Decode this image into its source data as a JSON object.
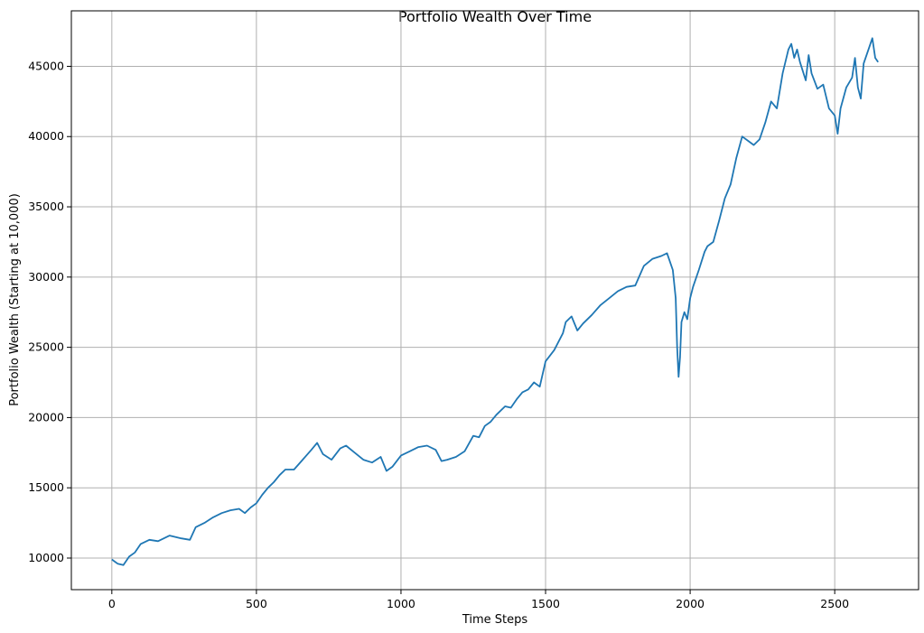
{
  "chart_data": {
    "type": "line",
    "title": "Portfolio Wealth Over Time",
    "xlabel": "Time Steps",
    "ylabel": "Portfolio Wealth (Starting at 10,000)",
    "xlim": [
      -140,
      2790
    ],
    "ylim": [
      7750,
      48950
    ],
    "xticks": [
      0,
      500,
      1000,
      1500,
      2000,
      2500
    ],
    "yticks": [
      10000,
      15000,
      20000,
      25000,
      30000,
      35000,
      40000,
      45000
    ],
    "grid": true,
    "series_color": "#1f77b4",
    "series": [
      {
        "x": [
          0,
          20,
          40,
          60,
          80,
          100,
          130,
          160,
          200,
          240,
          270,
          290,
          320,
          350,
          380,
          410,
          440,
          460,
          480,
          500,
          520,
          540,
          560,
          580,
          600,
          630,
          660,
          690,
          710,
          730,
          760,
          790,
          810,
          840,
          870,
          900,
          930,
          950,
          970,
          1000,
          1030,
          1060,
          1090,
          1120,
          1140,
          1160,
          1190,
          1220,
          1250,
          1270,
          1290,
          1310,
          1330,
          1360,
          1380,
          1400,
          1420,
          1440,
          1460,
          1480,
          1500,
          1530,
          1560,
          1570,
          1590,
          1610,
          1630,
          1660,
          1690,
          1720,
          1750,
          1780,
          1810,
          1840,
          1870,
          1900,
          1920,
          1940,
          1950,
          1955,
          1960,
          1965,
          1970,
          1980,
          1990,
          2000,
          2010,
          2030,
          2050,
          2060,
          2080,
          2100,
          2120,
          2140,
          2160,
          2180,
          2200,
          2220,
          2240,
          2260,
          2280,
          2300,
          2320,
          2340,
          2350,
          2360,
          2370,
          2380,
          2400,
          2410,
          2420,
          2440,
          2460,
          2480,
          2500,
          2510,
          2520,
          2540,
          2560,
          2570,
          2580,
          2590,
          2600,
          2620,
          2630,
          2640,
          2650
        ],
        "y": [
          9900,
          9600,
          9500,
          10100,
          10400,
          11000,
          11300,
          11200,
          11600,
          11400,
          11300,
          12200,
          12500,
          12900,
          13200,
          13400,
          13500,
          13200,
          13600,
          13900,
          14500,
          15000,
          15400,
          15900,
          16300,
          16300,
          17000,
          17700,
          18200,
          17400,
          17000,
          17800,
          18000,
          17500,
          17000,
          16800,
          17200,
          16200,
          16500,
          17300,
          17600,
          17900,
          18000,
          17700,
          16900,
          17000,
          17200,
          17600,
          18700,
          18600,
          19400,
          19700,
          20200,
          20800,
          20700,
          21300,
          21800,
          22000,
          22500,
          22200,
          24000,
          24800,
          26000,
          26800,
          27200,
          26200,
          26700,
          27300,
          28000,
          28500,
          29000,
          29300,
          29400,
          30800,
          31300,
          31500,
          31700,
          30500,
          28500,
          25000,
          22900,
          24300,
          26800,
          27500,
          27000,
          28500,
          29300,
          30500,
          31800,
          32200,
          32500,
          34000,
          35600,
          36600,
          38500,
          40000,
          39700,
          39400,
          39800,
          41000,
          42500,
          42000,
          44500,
          46200,
          46600,
          45600,
          46200,
          45300,
          44000,
          45800,
          44500,
          43400,
          43700,
          42000,
          41500,
          40200,
          42000,
          43500,
          44200,
          45600,
          43500,
          42700,
          45200,
          46400,
          47000,
          45600,
          45300
        ]
      }
    ]
  }
}
